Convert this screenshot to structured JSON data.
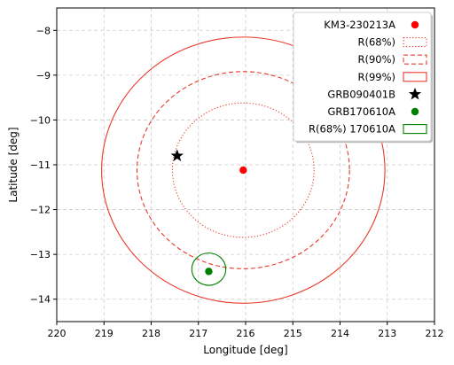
{
  "chart_data": {
    "type": "scatter",
    "xlabel": "Longitude [deg]",
    "ylabel": "Latitude [deg]",
    "xlim": [
      220,
      212
    ],
    "ylim": [
      -14.5,
      -7.5
    ],
    "x_inverted": true,
    "grid": true,
    "x_ticks": [
      "220",
      "219",
      "218",
      "217",
      "216",
      "215",
      "214",
      "213",
      "212"
    ],
    "y_ticks": [
      "−8",
      "−9",
      "−10",
      "−11",
      "−12",
      "−13",
      "−14"
    ],
    "legend_position": "top-right",
    "points": [
      {
        "name": "KM3-230213A",
        "x": 216.05,
        "y": -11.12,
        "marker": "circle",
        "color": "#ff0000"
      },
      {
        "name": "GRB090401B",
        "x": 217.45,
        "y": -10.8,
        "marker": "star",
        "color": "#000000"
      },
      {
        "name": "GRB170610A",
        "x": 216.78,
        "y": -13.38,
        "marker": "circle",
        "color": "#008000"
      }
    ],
    "regions": [
      {
        "name": "R(68%)",
        "center": [
          216.05,
          -11.12
        ],
        "rx": 1.5,
        "ry": 1.5,
        "style": "dotted",
        "color": "#e8392a"
      },
      {
        "name": "R(90%)",
        "center": [
          216.05,
          -11.12
        ],
        "rx": 2.25,
        "ry": 2.2,
        "style": "dashed",
        "color": "#e8392a"
      },
      {
        "name": "R(99%)",
        "center": [
          216.05,
          -11.12
        ],
        "rx": 3.0,
        "ry": 2.97,
        "style": "solid",
        "color": "#e8392a"
      },
      {
        "name": "R(68%) 170610A",
        "center": [
          216.78,
          -13.33
        ],
        "rx": 0.36,
        "ry": 0.36,
        "style": "solid",
        "color": "#008000"
      }
    ],
    "legend": [
      {
        "label": "KM3-230213A",
        "kind": "point",
        "marker": "circle",
        "color": "#ff0000"
      },
      {
        "label": "R(68%)",
        "kind": "patch",
        "style": "dotted",
        "color": "#e8392a"
      },
      {
        "label": "R(90%)",
        "kind": "patch",
        "style": "dashed",
        "color": "#e8392a"
      },
      {
        "label": "R(99%)",
        "kind": "patch",
        "style": "solid",
        "color": "#e8392a"
      },
      {
        "label": "GRB090401B",
        "kind": "point",
        "marker": "star",
        "color": "#000000"
      },
      {
        "label": "GRB170610A",
        "kind": "point",
        "marker": "circle",
        "color": "#008000"
      },
      {
        "label": "R(68%) 170610A",
        "kind": "patch",
        "style": "solid",
        "color": "#008000"
      }
    ]
  }
}
